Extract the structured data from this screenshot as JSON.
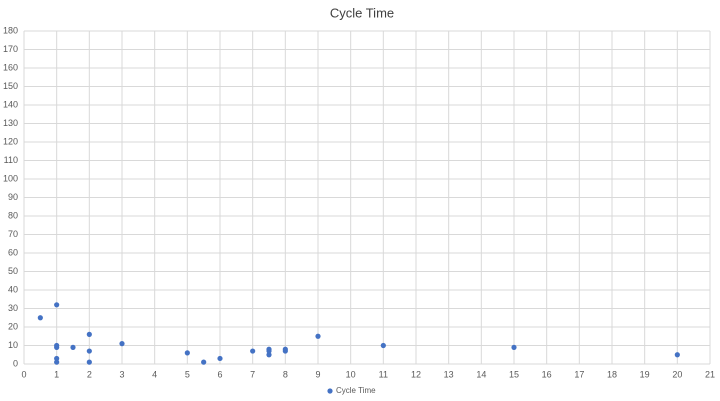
{
  "chart_data": {
    "type": "scatter",
    "title": "Cycle Time",
    "x": [
      0.5,
      1,
      1,
      1,
      1,
      1,
      1.5,
      2,
      2,
      2,
      3,
      5,
      5.5,
      6,
      7,
      7.5,
      7.5,
      7.5,
      8,
      8,
      9,
      11,
      15,
      20
    ],
    "series": [
      {
        "name": "Cycle Time",
        "color": "#4472c4",
        "values": [
          25,
          32,
          10,
          9,
          3,
          1,
          9,
          16,
          7,
          1,
          11,
          6,
          1,
          3,
          7,
          8,
          7,
          5,
          8,
          7,
          15,
          10,
          9,
          5
        ]
      }
    ],
    "xlim": [
      0,
      21
    ],
    "xticks": [
      0,
      1,
      2,
      3,
      4,
      5,
      6,
      7,
      8,
      9,
      10,
      11,
      12,
      13,
      14,
      15,
      16,
      17,
      18,
      19,
      20,
      21
    ],
    "ylim": [
      0,
      180
    ],
    "yticks": [
      0,
      10,
      20,
      30,
      40,
      50,
      60,
      70,
      80,
      90,
      100,
      110,
      120,
      130,
      140,
      150,
      160,
      170,
      180
    ],
    "grid": true,
    "legend": "bottom"
  }
}
